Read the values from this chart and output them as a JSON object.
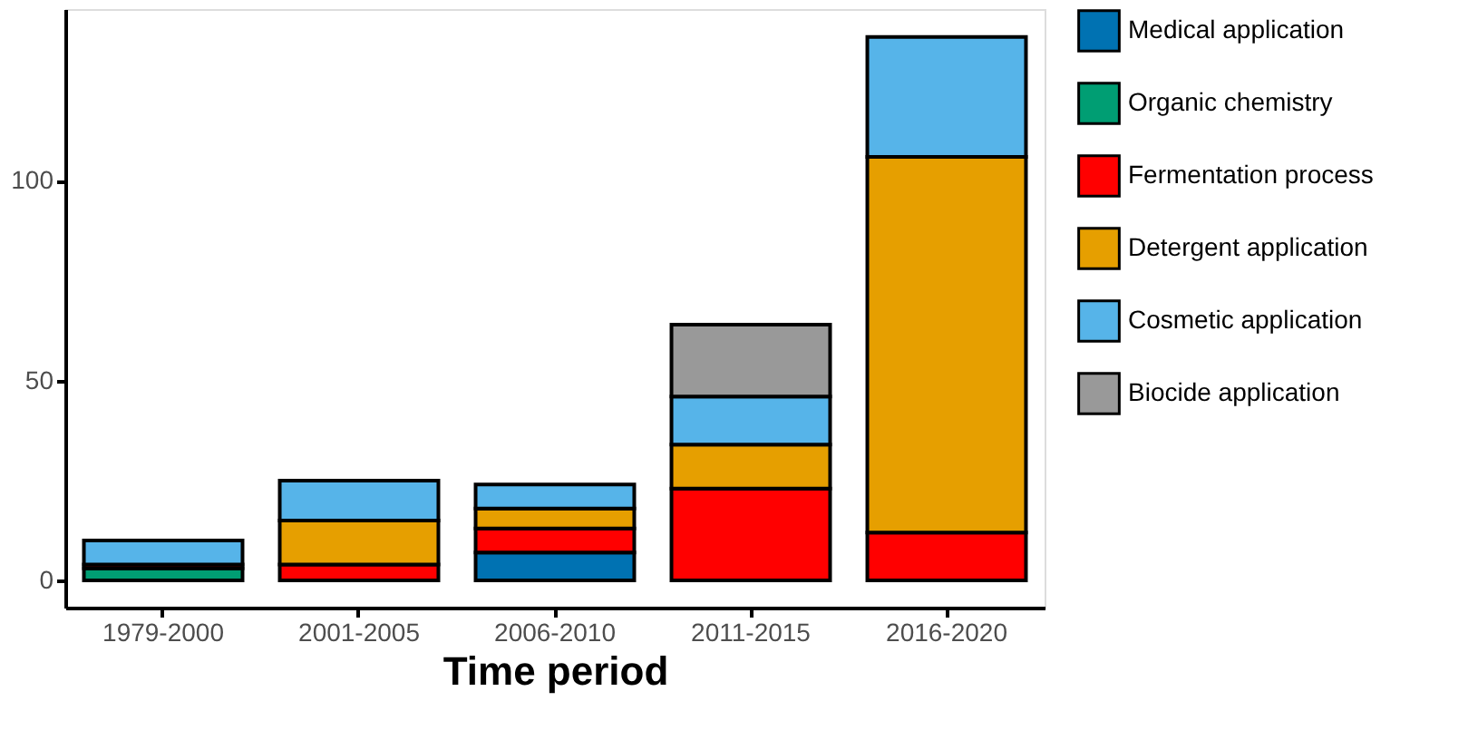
{
  "chart_data": {
    "type": "bar",
    "stacked": true,
    "xlabel": "Time period",
    "categories": [
      "1979-2000",
      "2001-2005",
      "2006-2010",
      "2011-2015",
      "2016-2020"
    ],
    "series": [
      {
        "name": "Medical application",
        "color": "#0072b2",
        "values": [
          null,
          null,
          7,
          null,
          null
        ]
      },
      {
        "name": "Organic chemistry",
        "color": "#009e73",
        "values": [
          3,
          null,
          null,
          null,
          null
        ]
      },
      {
        "name": "Fermentation process",
        "color": "#ff0000",
        "values": [
          1,
          4,
          6,
          23,
          12
        ]
      },
      {
        "name": "Detergent application",
        "color": "#e69f00",
        "values": [
          null,
          11,
          5,
          11,
          94
        ]
      },
      {
        "name": "Cosmetic application",
        "color": "#56b4e9",
        "values": [
          6,
          10,
          6,
          12,
          30
        ]
      },
      {
        "name": "Biocide application",
        "color": "#999999",
        "values": [
          null,
          null,
          null,
          18,
          null
        ]
      }
    ],
    "ylim": [
      -6.8,
      143
    ],
    "yticks": [
      0,
      50,
      100
    ],
    "grid": false,
    "legend": "right"
  }
}
